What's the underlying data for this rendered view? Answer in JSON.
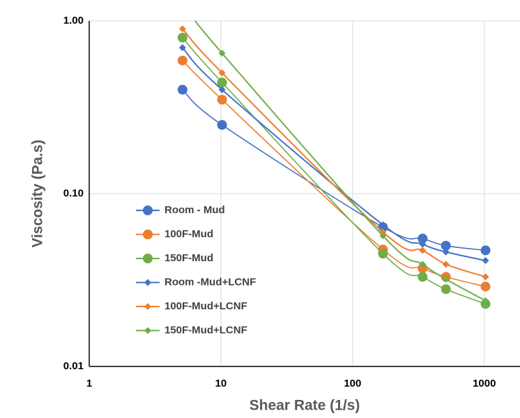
{
  "chart_data": {
    "type": "line",
    "x_label": "Shear Rate (1/s)",
    "y_label": "Viscosity (Pa.s)",
    "x": [
      5.11,
      10.2,
      170,
      340,
      511,
      1022
    ],
    "xscale": "log",
    "yscale": "log",
    "xlim": [
      1,
      1800
    ],
    "ylim": [
      0.01,
      1
    ],
    "xticks": [
      1,
      10,
      100,
      1000
    ],
    "yticks": [
      {
        "value": 0.01,
        "label": "0.01"
      },
      {
        "value": 0.1,
        "label": "0.10"
      },
      {
        "value": 1,
        "label": "1.00"
      }
    ],
    "grid": true,
    "legend": "left",
    "series": [
      {
        "name": "Room - Mud",
        "color": "#4472c4",
        "marker": "circle",
        "values": [
          0.4,
          0.25,
          0.064,
          0.055,
          0.05,
          0.047
        ]
      },
      {
        "name": "100F-Mud",
        "color": "#ed7d31",
        "marker": "circle",
        "values": [
          0.59,
          0.35,
          0.0475,
          0.037,
          0.033,
          0.029
        ]
      },
      {
        "name": "150F-Mud",
        "color": "#70ad47",
        "marker": "circle",
        "values": [
          0.8,
          0.44,
          0.045,
          0.033,
          0.028,
          0.023
        ]
      },
      {
        "name": "Room -Mud+LCNF",
        "color": "#4472c4",
        "marker": "diamond",
        "values": [
          0.7,
          0.4,
          0.066,
          0.051,
          0.046,
          0.041
        ]
      },
      {
        "name": "100F-Mud+LCNF",
        "color": "#ed7d31",
        "marker": "diamond",
        "values": [
          0.9,
          0.5,
          0.06,
          0.047,
          0.039,
          0.033
        ]
      },
      {
        "name": "150F-Mud+LCNF",
        "color": "#70ad47",
        "marker": "diamond",
        "values": [
          1.25,
          0.65,
          0.057,
          0.039,
          0.032,
          0.024
        ]
      }
    ]
  }
}
